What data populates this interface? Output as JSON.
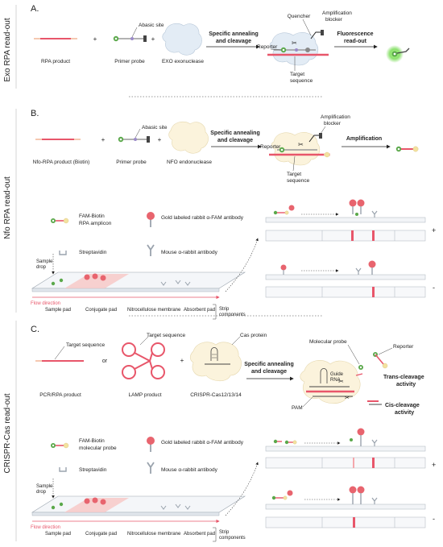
{
  "side_labels": {
    "a": "Exo RPA read-out",
    "b": "Nfo RPA read-out",
    "c": "CRISPR-Cas read-out"
  },
  "panels": {
    "a": {
      "letter": "A.",
      "components": [
        "RPA product",
        "Primer probe",
        "EXO exonuclease"
      ],
      "plus": "+",
      "probe_label": "Abasic site",
      "step1": [
        "Specific annealing",
        "and cleavage"
      ],
      "complex_labels": {
        "quencher": "Quencher",
        "blocker": [
          "Amplification",
          "blocker"
        ],
        "reporter": "Reporter",
        "target": [
          "Target",
          "sequence"
        ]
      },
      "step2": [
        "Fluorescence",
        "read-out"
      ]
    },
    "b": {
      "letter": "B.",
      "components": [
        "Nfo-RPA product (Biotin)",
        "Primer probe",
        "NFO endonuclease"
      ],
      "plus": "+",
      "probe_label": "Abasic site",
      "step1": [
        "Specific annealing",
        "and cleavage"
      ],
      "complex_labels": {
        "blocker": [
          "Amplification",
          "blocker"
        ],
        "reporter": "Reporter",
        "target": [
          "Target",
          "sequence"
        ]
      },
      "step2": "Amplification",
      "legend": {
        "amplicon": [
          "FAM-Biotin",
          "RPA amplicon"
        ],
        "gold": "Gold labeled rabbit α-FAM antibody",
        "strep": "Streptavidin",
        "mouse": "Mouse α-rabbit antibody"
      },
      "strip": {
        "sample_drop": [
          "Sample",
          "drop"
        ],
        "flow": "Flow direction",
        "pads": [
          "Sample pad",
          "Conjugate pad",
          "Nitrocellulose membrane",
          "Absorbent pad"
        ],
        "components": [
          "Strip",
          "components"
        ]
      },
      "results": [
        "+",
        "-"
      ]
    },
    "c": {
      "letter": "C.",
      "components": [
        "PCR/RPA product",
        "LAMP product",
        "CRISPR-Cas12/13/14"
      ],
      "or": "or",
      "plus": "+",
      "target_label": "Target sequence",
      "cas_label": "Cas protein",
      "step1": [
        "Specific annealing",
        "and cleavage"
      ],
      "complex_labels": {
        "probe": "Molecular probe",
        "reporter": "Reporter",
        "guide": [
          "Guide",
          "RNA"
        ],
        "pam": "PAM",
        "trans": [
          "Trans-cleavage",
          "activity"
        ],
        "cis": [
          "Cis-cleavage",
          "activity"
        ]
      },
      "legend": {
        "amplicon": [
          "FAM-Biotin",
          "molecular probe"
        ],
        "gold": "Gold labeled rabbit α-FAM antibody",
        "strep": "Streptavidin",
        "mouse": "Mouse α-rabbit antibody"
      },
      "strip": {
        "sample_drop": [
          "Sample",
          "drop"
        ],
        "flow": "Flow direction",
        "pads": [
          "Sample pad",
          "Conjugate pad",
          "Nitrocellulose membrane",
          "Absorbent pad"
        ],
        "components": [
          "Strip",
          "components"
        ]
      },
      "results": [
        "+",
        "-"
      ]
    }
  },
  "colors": {
    "strand_red": "#e8566a",
    "strand_pink": "#f2a3a8",
    "green": "#5aa84a",
    "yellow": "#f3e2a0",
    "gold": "#e8646e",
    "antibody": "#9aa3ad",
    "blob_blue": "#e3ecf5",
    "blob_yellow": "#fbf3dc",
    "glow": "#7fe36a"
  }
}
